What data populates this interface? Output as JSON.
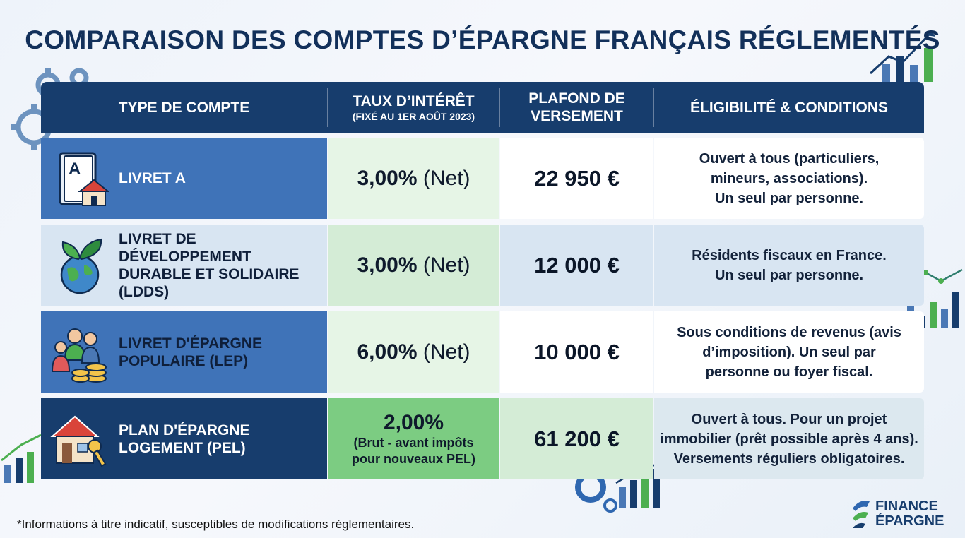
{
  "title": "COMPARAISON DES COMPTES D’ÉPARGNE FRANÇAIS RÉGLEMENTÉS",
  "header": {
    "col1": "TYPE DE COMPTE",
    "col2": "TAUX D’INTÉRÊT",
    "col2_sub": "(FIXÉ AU 1ER AOÛT 2023)",
    "col3_line1": "PLAFOND DE",
    "col3_line2": "VERSEMENT",
    "col4": "ÉLIGIBILITÉ & CONDITIONS"
  },
  "rows": [
    {
      "icon": "livret-a-house-icon",
      "name": "LIVRET A",
      "rate": "3,00%",
      "rate_suffix": " (Net)",
      "cap": "22 950 €",
      "elig": [
        "Ouvert à tous (particuliers,",
        "mineurs, associations).",
        "Un seul par personne."
      ]
    },
    {
      "icon": "globe-plant-icon",
      "name_lines": [
        "LIVRET DE",
        "DÉVELOPPEMENT",
        "DURABLE ET SOLIDAIRE",
        "(LDDS)"
      ],
      "rate": "3,00%",
      "rate_suffix": " (Net)",
      "cap": "12 000 €",
      "elig": [
        "Résidents fiscaux en France.",
        "Un seul par personne."
      ]
    },
    {
      "icon": "family-coins-icon",
      "name_lines": [
        "LIVRET D'ÉPARGNE",
        "POPULAIRE (LEP)"
      ],
      "rate": "6,00%",
      "rate_suffix": " (Net)",
      "cap": "10 000 €",
      "elig": [
        "Sous conditions de revenus (avis",
        "d’imposition). Un seul par",
        "personne ou foyer fiscal."
      ]
    },
    {
      "icon": "house-key-icon",
      "name_lines": [
        "PLAN D'ÉPARGNE",
        "LOGEMENT (PEL)"
      ],
      "rate": "2,00%",
      "rate_note": [
        "(Brut - avant impôts",
        "pour nouveaux PEL)"
      ],
      "cap": "61 200 €",
      "elig": [
        "Ouvert à tous. Pour un projet",
        "immobilier (prêt possible après 4 ans).",
        "Versements réguliers obligatoires."
      ]
    }
  ],
  "footnote": "*Informations à titre indicatif, susceptibles de modifications réglementaires.",
  "logo": {
    "line1": "FINANCE",
    "line2": "ÉPARGNE"
  },
  "colors": {
    "header": "#173d6d",
    "row_blue": "#3f73b8",
    "row_light": "#d8e5f2",
    "row_dark": "#173d6d",
    "rate_green": "#e4f4e4",
    "accent_green": "#4caf50"
  }
}
